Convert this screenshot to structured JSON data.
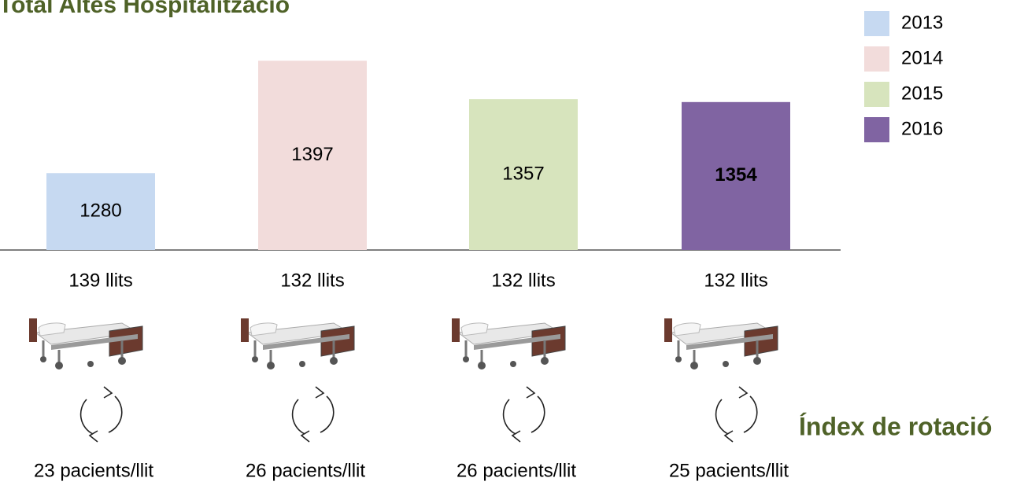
{
  "chart_data": {
    "type": "bar",
    "title": "Total Altes Hospitalització",
    "series": [
      {
        "name": "2013",
        "color": "#c6d9f1",
        "values": [
          1280
        ]
      },
      {
        "name": "2014",
        "color": "#f2dcdb",
        "values": [
          1397
        ]
      },
      {
        "name": "2015",
        "color": "#d7e4bd",
        "values": [
          1357
        ]
      },
      {
        "name": "2016",
        "color": "#8064a2",
        "values": [
          1354
        ]
      }
    ],
    "bold_value_labels": [
      false,
      false,
      false,
      true
    ],
    "ylim": [
      1200,
      1400
    ],
    "bed_labels": [
      "139 llits",
      "132 llits",
      "132 llits",
      "132 llits"
    ],
    "rotation_title": "Índex de rotació",
    "rotation_labels": [
      "23 pacients/llit",
      "26 pacients/llit",
      "26 pacients/llit",
      "25 pacients/llit"
    ]
  }
}
